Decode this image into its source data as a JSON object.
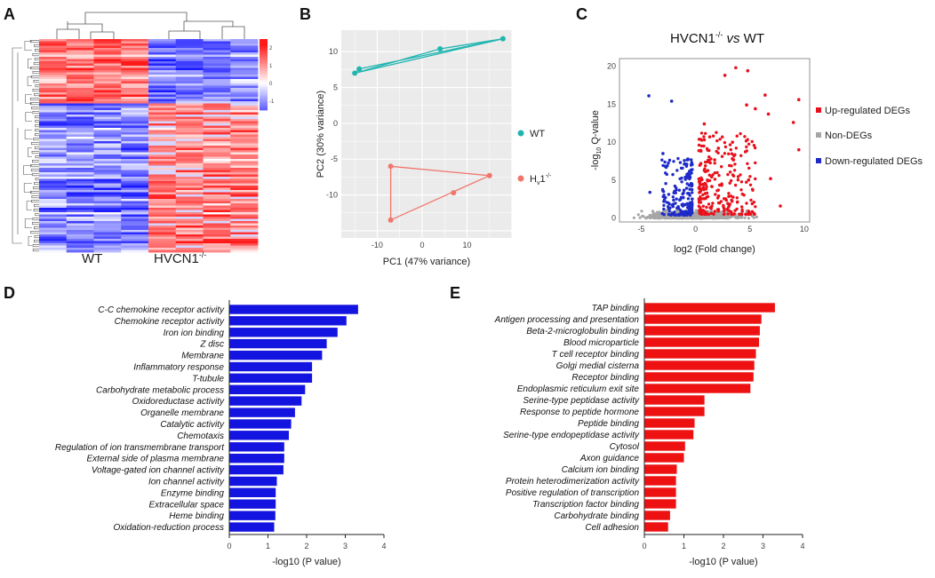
{
  "panel_labels": {
    "a": "A",
    "b": "B",
    "c": "C",
    "d": "D",
    "e": "E"
  },
  "chart_data": [
    {
      "id": "A",
      "type": "heatmap",
      "group_labels": [
        "WT",
        "HVCN1"
      ],
      "group_superscript": "-/-",
      "colorbar_ticks": [
        "2",
        "1",
        "0",
        "-1"
      ],
      "colorbar_range": [
        -1.5,
        2.5
      ]
    },
    {
      "id": "B",
      "type": "scatter",
      "xlabel": "PC1 (47% variance)",
      "ylabel": "PC2 (30% variance)",
      "xlim": [
        -18,
        20
      ],
      "ylim": [
        -16,
        13
      ],
      "xticks": [
        -10,
        0,
        10
      ],
      "yticks": [
        10,
        5,
        0,
        -5,
        -10
      ],
      "series": [
        {
          "name": "WT",
          "color": "#22b5b0",
          "x": [
            -15,
            -14,
            4,
            18
          ],
          "y": [
            7,
            7.6,
            10.4,
            11.8
          ]
        },
        {
          "name": "Hv1",
          "name_sub": "v",
          "name_sup": "-/-",
          "color": "#f0766c",
          "x": [
            -7,
            -7,
            7,
            15
          ],
          "y": [
            -6,
            -13.5,
            -9.7,
            -7.3
          ]
        }
      ]
    },
    {
      "id": "C",
      "type": "scatter",
      "title_a": "HVCN1",
      "title_sup": "-/-",
      "title_vs": "vs",
      "title_b": "WT",
      "xlabel": "log2 (Fold change)",
      "ylabel": "-log10 Q-value",
      "ylabel_pre": "-log",
      "ylabel_sub": "10",
      "ylabel_post": " Q-value",
      "xlim": [
        -7,
        10.5
      ],
      "ylim": [
        -0.5,
        21
      ],
      "xticks": [
        -5,
        0,
        5,
        10
      ],
      "yticks": [
        0,
        5,
        10,
        15,
        20
      ],
      "legend": [
        {
          "label": "Up-regulated DEGs",
          "color": "#e8111c"
        },
        {
          "label": "Non-DEGs",
          "color": "#a6a6a6"
        },
        {
          "label": "Down-regulated DEGs",
          "color": "#1f2bc8"
        }
      ],
      "highlight_points": {
        "up": [
          [
            3.7,
            19.8
          ],
          [
            2.7,
            18.8
          ],
          [
            4.8,
            19.4
          ],
          [
            9.5,
            15.6
          ],
          [
            6.7,
            13.7
          ],
          [
            9.0,
            12.6
          ],
          [
            5.5,
            14.4
          ],
          [
            4.7,
            14.9
          ],
          [
            6.4,
            16.2
          ],
          [
            9.5,
            9.0
          ],
          [
            0.8,
            12.4
          ],
          [
            2.1,
            9.2
          ],
          [
            3.4,
            10.0
          ],
          [
            1.3,
            10.7
          ],
          [
            7.8,
            1.6
          ],
          [
            6.9,
            5.2
          ]
        ],
        "down": [
          [
            -4.3,
            16.1
          ],
          [
            -2.2,
            15.4
          ],
          [
            -3.0,
            8.5
          ],
          [
            -4.2,
            3.4
          ],
          [
            -2.6,
            6.9
          ]
        ]
      }
    },
    {
      "id": "D",
      "type": "bar",
      "orientation": "horizontal",
      "color": "#1414e0",
      "xlabel": "-log10 (P value)",
      "xlim": [
        0,
        4
      ],
      "xticks": [
        0,
        1,
        2,
        3,
        4
      ],
      "categories": [
        "C-C chemokine receptor activity",
        "Chemokine receptor activity",
        "Iron ion binding",
        "Z disc",
        "Membrane",
        "Inflammatory response",
        "T-tubule",
        "Carbohydrate metabolic process",
        "Oxidoreductase activity",
        "Organelle membrane",
        "Catalytic activity",
        "Chemotaxis",
        "Regulation of ion transmembrane transport",
        "External side of plasma membrane",
        "Voltage-gated ion channel activity",
        "Ion channel activity",
        "Enzyme binding",
        "Extracellular space",
        "Heme binding",
        "Oxidation-reduction process"
      ],
      "values": [
        3.33,
        3.03,
        2.8,
        2.52,
        2.4,
        2.14,
        2.14,
        1.96,
        1.87,
        1.7,
        1.6,
        1.54,
        1.42,
        1.42,
        1.4,
        1.23,
        1.2,
        1.2,
        1.19,
        1.16
      ]
    },
    {
      "id": "E",
      "type": "bar",
      "orientation": "horizontal",
      "color": "#ee1111",
      "xlabel": "-log10 (P value)",
      "xlim": [
        0,
        4
      ],
      "xticks": [
        0,
        1,
        2,
        3,
        4
      ],
      "categories": [
        "TAP binding",
        "Antigen processing and presentation",
        "Beta-2-microglobulin binding",
        "Blood microparticle",
        "T cell receptor binding",
        "Golgi medial cisterna",
        "Receptor binding",
        "Endoplasmic reticulum exit site",
        "Serine-type peptidase activity",
        "Response to peptide hormone",
        "Peptide binding",
        "Serine-type endopeptidase activity",
        "Cytosol",
        "Axon guidance",
        "Calcium ion binding",
        "Protein heterodimerization activity",
        "Positive regulation of transcription",
        "Transcription factor binding",
        "Carbohydrate binding",
        "Cell adhesion"
      ],
      "values": [
        3.3,
        2.96,
        2.92,
        2.9,
        2.82,
        2.78,
        2.76,
        2.68,
        1.52,
        1.52,
        1.27,
        1.24,
        1.03,
        1.0,
        0.82,
        0.8,
        0.8,
        0.8,
        0.65,
        0.6
      ]
    }
  ]
}
